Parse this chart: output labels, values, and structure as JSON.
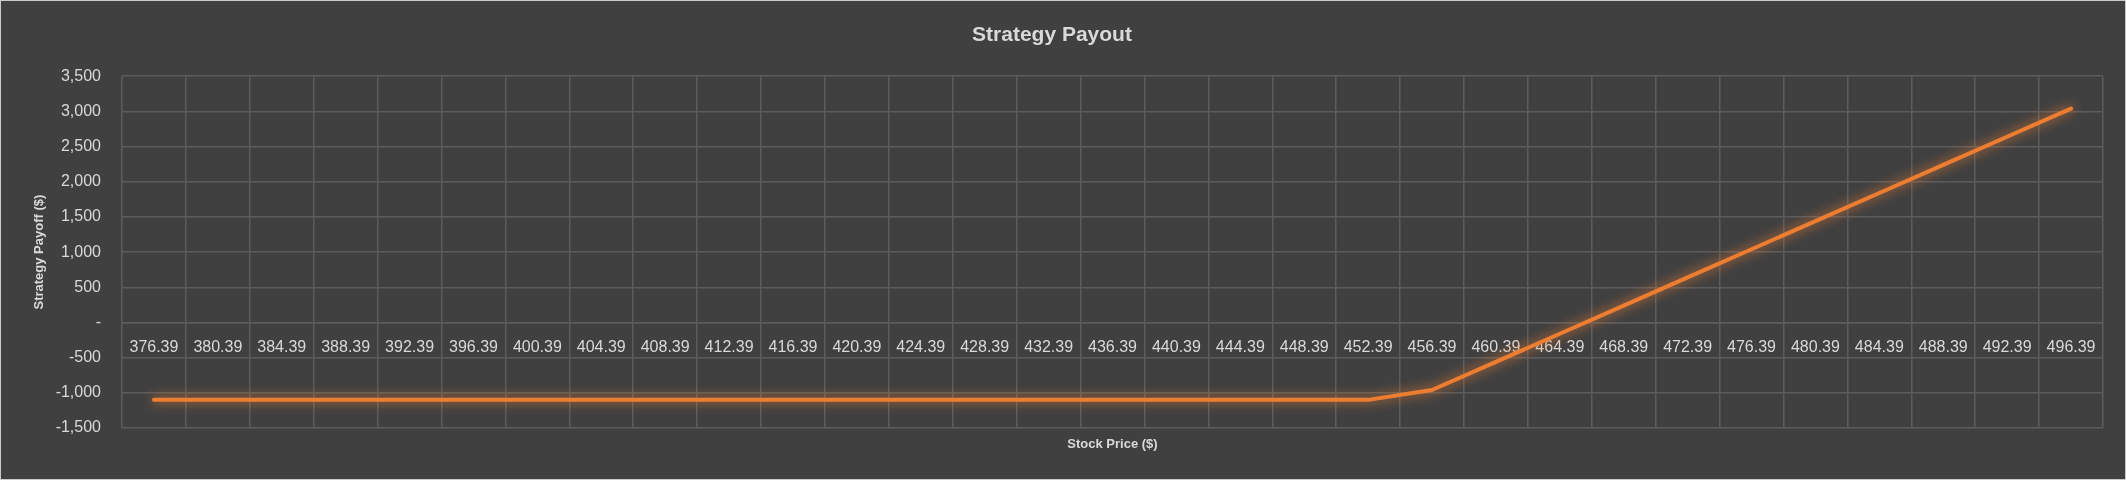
{
  "chart_data": {
    "type": "line",
    "title": "Strategy Payout",
    "xlabel": "Stock Price ($)",
    "ylabel": "Strategy Payoff ($)",
    "categories": [
      "376.39",
      "380.39",
      "384.39",
      "388.39",
      "392.39",
      "396.39",
      "400.39",
      "404.39",
      "408.39",
      "412.39",
      "416.39",
      "420.39",
      "424.39",
      "428.39",
      "432.39",
      "436.39",
      "440.39",
      "444.39",
      "448.39",
      "452.39",
      "456.39",
      "460.39",
      "464.39",
      "468.39",
      "472.39",
      "476.39",
      "480.39",
      "484.39",
      "488.39",
      "492.39",
      "496.39"
    ],
    "values": [
      -1100,
      -1100,
      -1100,
      -1100,
      -1100,
      -1100,
      -1100,
      -1100,
      -1100,
      -1100,
      -1100,
      -1100,
      -1100,
      -1100,
      -1100,
      -1100,
      -1100,
      -1100,
      -1100,
      -1100,
      -960,
      -560,
      -160,
      240,
      640,
      1040,
      1440,
      1840,
      2240,
      2640,
      3040
    ],
    "color": "#ed7d31",
    "ylim": [
      -1500,
      3500
    ],
    "yticks": [
      {
        "value": -1500,
        "label": "-1,500"
      },
      {
        "value": -1000,
        "label": "-1,000"
      },
      -500,
      {
        "value": 0,
        "label": "-"
      },
      500,
      {
        "value": 1000,
        "label": "1,000"
      },
      {
        "value": 1500,
        "label": "1,500"
      },
      {
        "value": 2000,
        "label": "2,000"
      },
      {
        "value": 2500,
        "label": "2,500"
      },
      {
        "value": 3000,
        "label": "3,000"
      },
      {
        "value": 3500,
        "label": "3,500"
      }
    ],
    "grid": true
  }
}
